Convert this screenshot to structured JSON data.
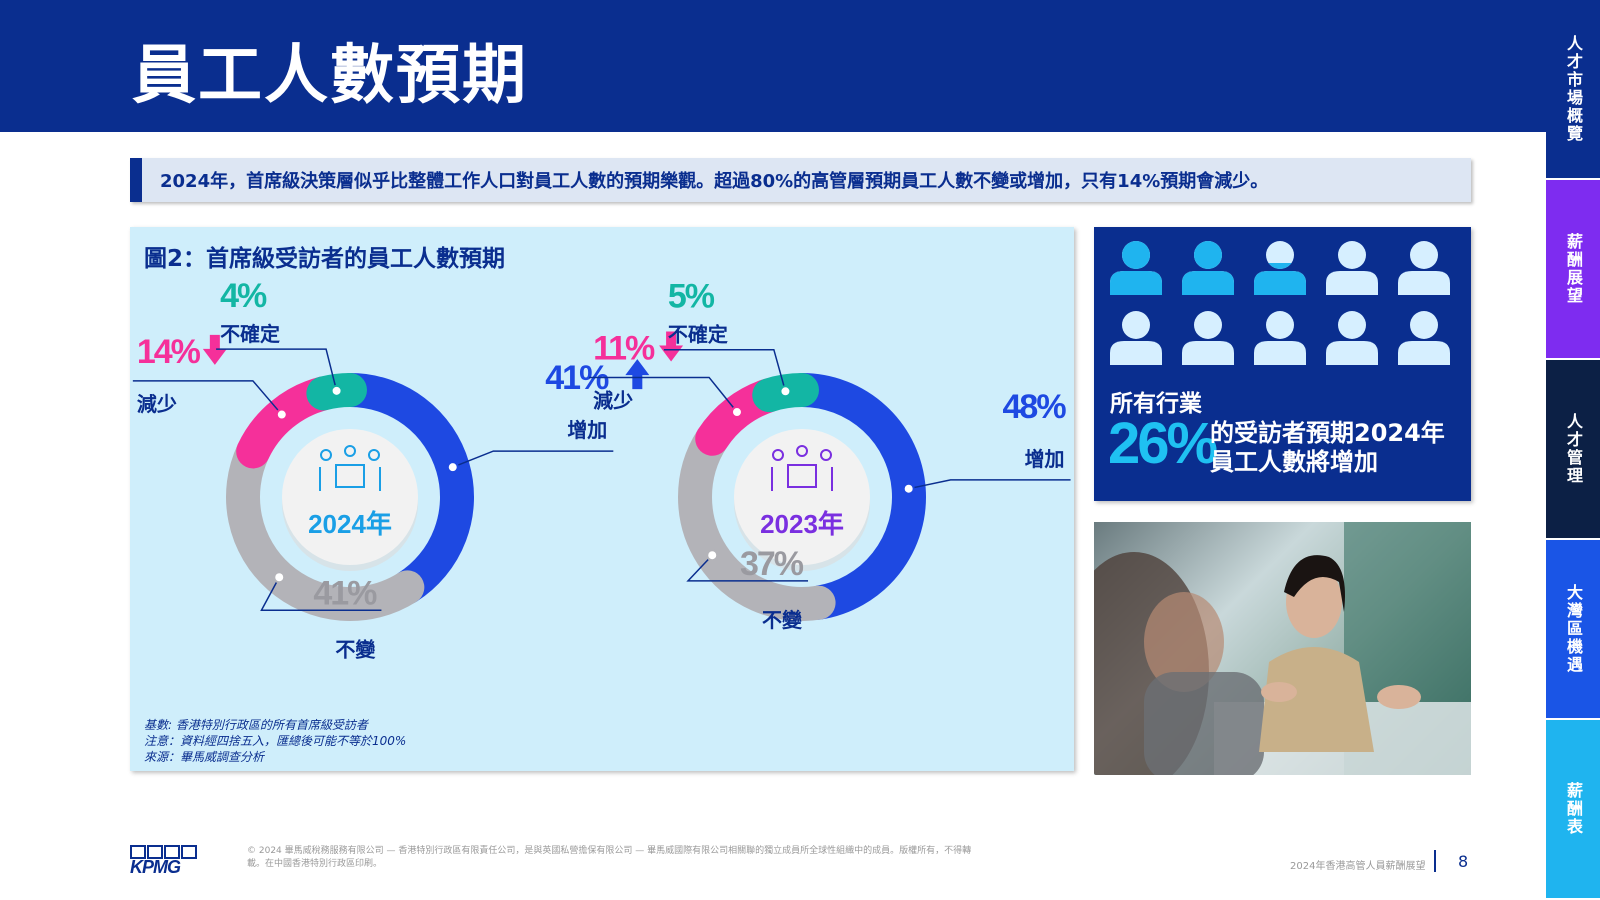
{
  "page": {
    "title": "員工人數預期",
    "summary": "2024年，首席級決策層似乎比整體工作人口對員工人數的預期樂觀。超過80%的高管層預期員工人數不變或增加，只有14%預期會減少。",
    "page_number": "8",
    "report_name": "2024年香港高管人員薪酬展望",
    "copyright": "© 2024 畢馬威稅務服務有限公司 — 香港特別行政區有限責任公司，是與英國私營擔保有限公司 — 畢馬威國際有限公司相關聯的獨立成員所全球性組織中的成員。版權所有，不得轉載。在中國香港特別行政區印刷。",
    "logo_text": "KPMG"
  },
  "side_tabs": [
    {
      "label": "人才市場概覽",
      "color": "#0a2e8f"
    },
    {
      "label": "薪酬展望",
      "color": "#7e2cf0"
    },
    {
      "label": "人才管理",
      "color": "#0c2045"
    },
    {
      "label": "大灣區機遇",
      "color": "#1a55e6"
    },
    {
      "label": "薪酬表",
      "color": "#1fb4ef"
    }
  ],
  "colors": {
    "increase": "#1e49e2",
    "unchanged": "#b3b3b8",
    "decrease": "#f5309a",
    "uncertain": "#13b6a4",
    "year_2024": "#1a9fe6",
    "year_2023": "#7a2fe0"
  },
  "chart_data": {
    "type": "pie",
    "title": "圖2：首席級受訪者的員工人數預期",
    "notes": [
      "基數: 香港特別行政區的所有首席級受訪者",
      "注意：資料經四捨五入，匯總後可能不等於100%",
      "來源：畢馬威調查分析"
    ],
    "categories": [
      "增加",
      "不變",
      "減少",
      "不確定"
    ],
    "series": [
      {
        "name": "2024年",
        "values": [
          41,
          41,
          14,
          4
        ],
        "labels": [
          "41%",
          "41%",
          "14%",
          "4%"
        ]
      },
      {
        "name": "2023年",
        "values": [
          48,
          37,
          11,
          5
        ],
        "labels": [
          "48%",
          "37%",
          "11%",
          "5%"
        ]
      }
    ]
  },
  "stat": {
    "label": "所有行業",
    "value": "26%",
    "description": "的受訪者預期2024年員工人數將增加",
    "icon_total": 10,
    "icon_filled": 2.6
  }
}
